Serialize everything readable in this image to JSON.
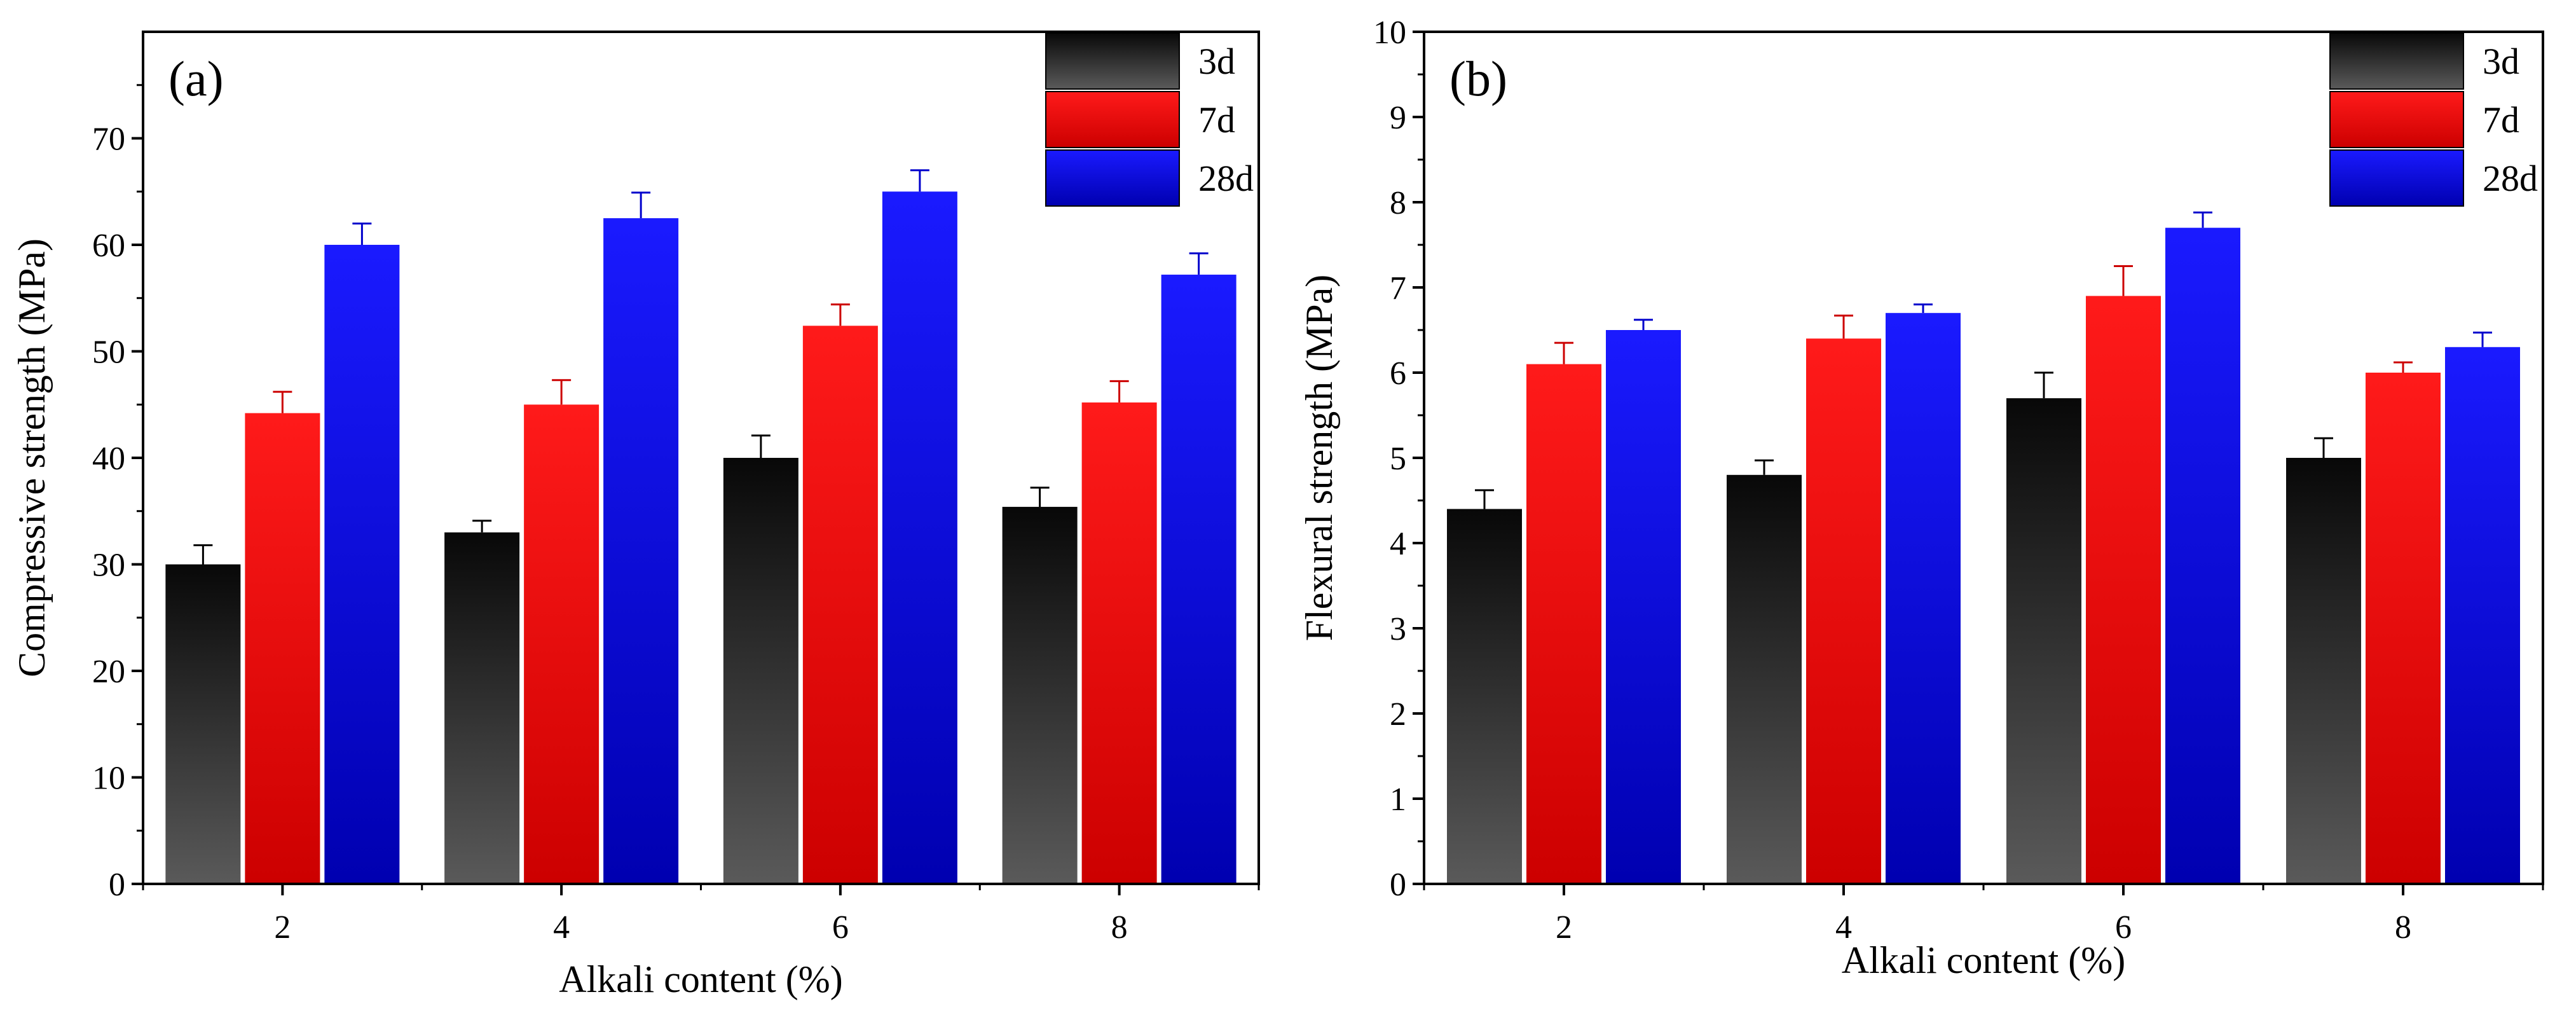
{
  "chart_data": [
    {
      "type": "bar",
      "panel_label": "(a)",
      "xlabel": "Alkali content (%)",
      "ylabel": "Compressive strength (MPa)",
      "categories": [
        "2",
        "4",
        "6",
        "8"
      ],
      "ylim": [
        0,
        80
      ],
      "yticks": [
        0,
        10,
        20,
        30,
        40,
        50,
        60,
        70
      ],
      "series": [
        {
          "name": "3d",
          "values": [
            30.0,
            33.0,
            40.0,
            35.4
          ],
          "errors": [
            1.8,
            1.1,
            2.1,
            1.8
          ]
        },
        {
          "name": "7d",
          "values": [
            44.2,
            45.0,
            52.4,
            45.2
          ],
          "errors": [
            2.0,
            2.3,
            2.0,
            2.0
          ]
        },
        {
          "name": "28d",
          "values": [
            60.0,
            62.5,
            65.0,
            57.2
          ],
          "errors": [
            2.0,
            2.4,
            2.0,
            2.0
          ]
        }
      ],
      "legend_position": "top-right"
    },
    {
      "type": "bar",
      "panel_label": "(b)",
      "xlabel": "Alkali content (%)",
      "ylabel": "Flexural strength (MPa)",
      "categories": [
        "2",
        "4",
        "6",
        "8"
      ],
      "ylim": [
        0,
        10
      ],
      "yticks": [
        0,
        1,
        2,
        3,
        4,
        5,
        6,
        7,
        8,
        9,
        10
      ],
      "series": [
        {
          "name": "3d",
          "values": [
            4.4,
            4.8,
            5.7,
            5.0
          ],
          "errors": [
            0.22,
            0.17,
            0.3,
            0.23
          ]
        },
        {
          "name": "7d",
          "values": [
            6.1,
            6.4,
            6.9,
            6.0
          ],
          "errors": [
            0.25,
            0.27,
            0.35,
            0.12
          ]
        },
        {
          "name": "28d",
          "values": [
            6.5,
            6.7,
            7.7,
            6.3
          ],
          "errors": [
            0.12,
            0.1,
            0.18,
            0.17
          ]
        }
      ],
      "legend_position": "top-right"
    }
  ],
  "colors": {
    "3d_top": "#080808",
    "3d_bottom": "#5a5a5a",
    "7d_top": "#ff1a1a",
    "7d_bottom": "#cc0000",
    "28d_top": "#1a1aff",
    "28d_bottom": "#0000b0",
    "axis": "#000000"
  }
}
